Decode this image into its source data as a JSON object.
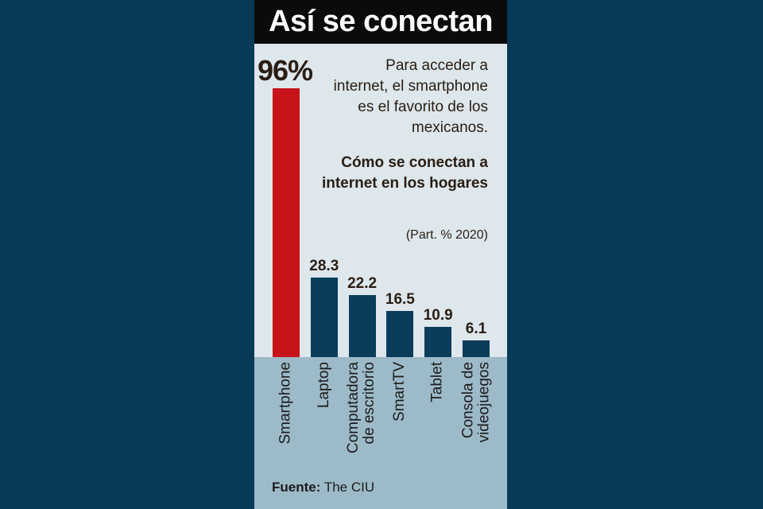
{
  "chart_data": {
    "type": "bar",
    "title": "Así se conectan",
    "highlight": "96%",
    "intro": "Para acceder a internet, el smartphone es el favorito de los mexicanos.",
    "subtitle": "Cómo se conectan a internet en los hogares",
    "unit": "(Part. % 2020)",
    "categories": [
      "Smartphone",
      "Laptop",
      "Computadora\nde escritorio",
      "SmartTV",
      "Tablet",
      "Consola de\nvideojuegos"
    ],
    "values": [
      96,
      28.3,
      22.2,
      16.5,
      10.9,
      6.1
    ],
    "value_labels": [
      "",
      "28.3",
      "22.2",
      "16.5",
      "10.9",
      "6.1"
    ],
    "colors": [
      "#c8131a",
      "#0c3c5c",
      "#0c3c5c",
      "#0c3c5c",
      "#0c3c5c",
      "#0c3c5c"
    ],
    "ylim": [
      0,
      96
    ],
    "source_label": "Fuente:",
    "source": "The CIU"
  }
}
